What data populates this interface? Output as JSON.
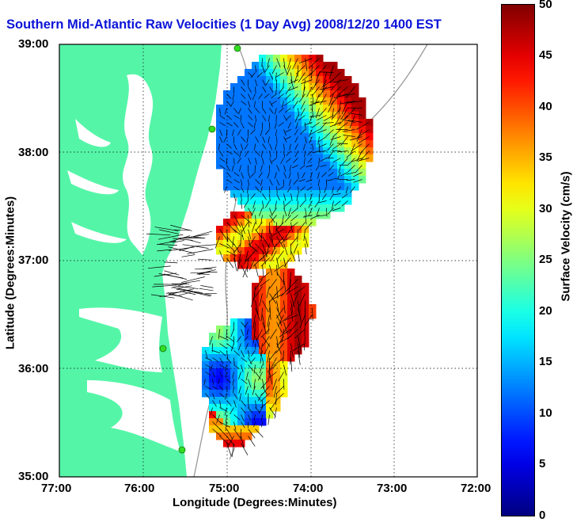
{
  "title": "Southern Mid-Atlantic Raw Velocities (1 Day Avg) 2008/12/20 1400 EST",
  "map": {
    "xlabel": "Longitude (Degrees:Minutes)",
    "ylabel": "Latitude (Degrees:Minutes)",
    "x_ticks": [
      "77:00",
      "76:00",
      "75:00",
      "74:00",
      "73:00",
      "72:00"
    ],
    "y_ticks": [
      "39:00",
      "38:00",
      "37:00",
      "36:00",
      "35:00"
    ],
    "land_color": "#55f5a8",
    "water_color": "#ffffff"
  },
  "colorbar": {
    "label": "Surface Velocity (cm/s)",
    "ticks": [
      "50",
      "45",
      "40",
      "35",
      "30",
      "25",
      "20",
      "15",
      "10",
      "5",
      "0"
    ],
    "range_cm_s": [
      0,
      50
    ],
    "colormap": "jet"
  },
  "chart_data": {
    "type": "heatmap",
    "title": "Southern Mid-Atlantic Raw Velocities (1 Day Avg) 2008/12/20 1400 EST",
    "xlabel": "Longitude (Degrees:Minutes)",
    "ylabel": "Latitude (Degrees:Minutes)",
    "xlim": [
      "77:00",
      "72:00"
    ],
    "ylim": [
      "35:00",
      "39:00"
    ],
    "color_range": [
      0,
      50
    ],
    "color_units": "cm/s",
    "grid": true,
    "regions": [
      {
        "area": "offshore Delaware/Maryland, 38:00-38:50N",
        "speed_cm_s": 12
      },
      {
        "area": "northeast edge near 38:20N 73:50W",
        "speed_cm_s": 45
      },
      {
        "area": "mouth of Chesapeake Bay, 37:00N",
        "speed_cm_s": 40
      },
      {
        "area": "off Cape Hatteras, 36:00N",
        "speed_cm_s": 15
      },
      {
        "area": "southern tip near 35:20N",
        "speed_cm_s": 40
      }
    ]
  }
}
